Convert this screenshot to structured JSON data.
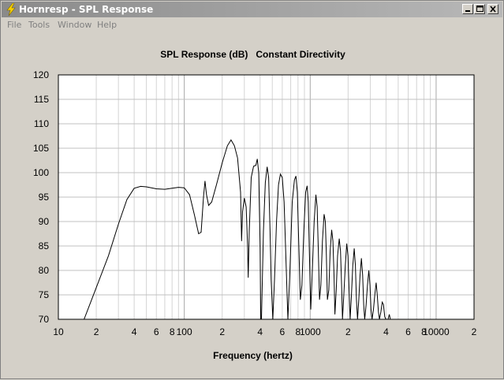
{
  "window": {
    "title": "Hornresp - SPL Response",
    "app_icon": "lightning-bolt-icon"
  },
  "menu": {
    "items": [
      "File",
      "Tools",
      "Window",
      "Help"
    ]
  },
  "chart_data": {
    "type": "line",
    "title": "SPL Response (dB)   Constant Directivity",
    "xlabel": "Frequency (hertz)",
    "ylabel": "",
    "x_scale": "log",
    "xlim": [
      10,
      20000
    ],
    "ylim": [
      70,
      120
    ],
    "y_ticks": [
      "70",
      "75",
      "80",
      "85",
      "90",
      "95",
      "100",
      "105",
      "110",
      "115",
      "120"
    ],
    "x_ticks": [
      {
        "value": 10,
        "label": "10"
      },
      {
        "value": 20,
        "label": "2"
      },
      {
        "value": 40,
        "label": "4"
      },
      {
        "value": 60,
        "label": "6"
      },
      {
        "value": 80,
        "label": "8"
      },
      {
        "value": 100,
        "label": "100"
      },
      {
        "value": 200,
        "label": "2"
      },
      {
        "value": 400,
        "label": "4"
      },
      {
        "value": 600,
        "label": "6"
      },
      {
        "value": 800,
        "label": "8"
      },
      {
        "value": 1000,
        "label": "1000"
      },
      {
        "value": 2000,
        "label": "2"
      },
      {
        "value": 4000,
        "label": "4"
      },
      {
        "value": 6000,
        "label": "6"
      },
      {
        "value": 8000,
        "label": "8"
      },
      {
        "value": 10000,
        "label": "10000"
      },
      {
        "value": 20000,
        "label": "2"
      }
    ],
    "grid": true,
    "series": [
      {
        "color": "#000000",
        "points": [
          [
            16,
            70
          ],
          [
            20,
            76.5
          ],
          [
            25,
            83
          ],
          [
            30,
            89.5
          ],
          [
            35,
            94.5
          ],
          [
            40,
            96.8
          ],
          [
            45,
            97.2
          ],
          [
            50,
            97.1
          ],
          [
            60,
            96.7
          ],
          [
            70,
            96.6
          ],
          [
            80,
            96.8
          ],
          [
            90,
            97
          ],
          [
            100,
            96.9
          ],
          [
            110,
            95.5
          ],
          [
            120,
            91.5
          ],
          [
            130,
            87.5
          ],
          [
            136,
            87.8
          ],
          [
            142,
            95
          ],
          [
            146,
            98.3
          ],
          [
            150,
            95.5
          ],
          [
            156,
            93.3
          ],
          [
            165,
            94
          ],
          [
            180,
            97.5
          ],
          [
            200,
            102
          ],
          [
            220,
            105.5
          ],
          [
            235,
            106.7
          ],
          [
            250,
            105.5
          ],
          [
            265,
            103
          ],
          [
            280,
            96
          ],
          [
            285,
            86
          ],
          [
            290,
            92
          ],
          [
            300,
            94.8
          ],
          [
            310,
            93
          ],
          [
            318,
            85
          ],
          [
            322,
            78.5
          ],
          [
            328,
            88
          ],
          [
            340,
            99
          ],
          [
            355,
            101.3
          ],
          [
            370,
            101.5
          ],
          [
            380,
            102.8
          ],
          [
            390,
            100
          ],
          [
            400,
            85
          ],
          [
            405,
            70
          ],
          [
            410,
            70
          ],
          [
            425,
            88
          ],
          [
            440,
            98
          ],
          [
            455,
            101.2
          ],
          [
            468,
            99
          ],
          [
            480,
            88
          ],
          [
            490,
            78
          ],
          [
            505,
            70
          ],
          [
            520,
            78
          ],
          [
            540,
            90
          ],
          [
            560,
            97.5
          ],
          [
            580,
            99.7
          ],
          [
            600,
            99
          ],
          [
            620,
            94
          ],
          [
            640,
            83
          ],
          [
            665,
            70
          ],
          [
            690,
            80
          ],
          [
            720,
            94
          ],
          [
            750,
            98.5
          ],
          [
            770,
            99.3
          ],
          [
            790,
            96
          ],
          [
            810,
            86
          ],
          [
            835,
            74
          ],
          [
            860,
            77
          ],
          [
            890,
            88
          ],
          [
            920,
            96
          ],
          [
            945,
            97.3
          ],
          [
            965,
            94
          ],
          [
            985,
            84
          ],
          [
            1010,
            72
          ],
          [
            1040,
            80
          ],
          [
            1075,
            90
          ],
          [
            1110,
            95.5
          ],
          [
            1135,
            93
          ],
          [
            1160,
            84
          ],
          [
            1185,
            74
          ],
          [
            1215,
            77
          ],
          [
            1250,
            86
          ],
          [
            1290,
            91.5
          ],
          [
            1320,
            90
          ],
          [
            1345,
            83
          ],
          [
            1370,
            74
          ],
          [
            1405,
            76
          ],
          [
            1440,
            84
          ],
          [
            1480,
            88.3
          ],
          [
            1515,
            86
          ],
          [
            1545,
            79
          ],
          [
            1570,
            71
          ],
          [
            1610,
            76
          ],
          [
            1650,
            83
          ],
          [
            1700,
            86.5
          ],
          [
            1740,
            84
          ],
          [
            1775,
            77
          ],
          [
            1805,
            70
          ],
          [
            1850,
            75
          ],
          [
            1900,
            81
          ],
          [
            1950,
            85.5
          ],
          [
            1995,
            83
          ],
          [
            2035,
            76
          ],
          [
            2075,
            70
          ],
          [
            2125,
            75
          ],
          [
            2180,
            81
          ],
          [
            2235,
            84.5
          ],
          [
            2285,
            81
          ],
          [
            2330,
            74
          ],
          [
            2375,
            70
          ],
          [
            2430,
            74
          ],
          [
            2490,
            79
          ],
          [
            2550,
            82.5
          ],
          [
            2610,
            79
          ],
          [
            2660,
            73
          ],
          [
            2710,
            70
          ],
          [
            2780,
            73
          ],
          [
            2850,
            77
          ],
          [
            2920,
            80
          ],
          [
            2985,
            77
          ],
          [
            3040,
            72
          ],
          [
            3100,
            70
          ],
          [
            3180,
            72
          ],
          [
            3260,
            75
          ],
          [
            3340,
            77.5
          ],
          [
            3410,
            75
          ],
          [
            3480,
            71.5
          ],
          [
            3550,
            70
          ],
          [
            3640,
            71.5
          ],
          [
            3730,
            73.5
          ],
          [
            3820,
            73
          ],
          [
            3910,
            70.5
          ],
          [
            4000,
            70
          ],
          [
            4150,
            70
          ],
          [
            4250,
            71
          ],
          [
            4330,
            70
          ],
          [
            4500,
            70
          ]
        ]
      }
    ]
  }
}
